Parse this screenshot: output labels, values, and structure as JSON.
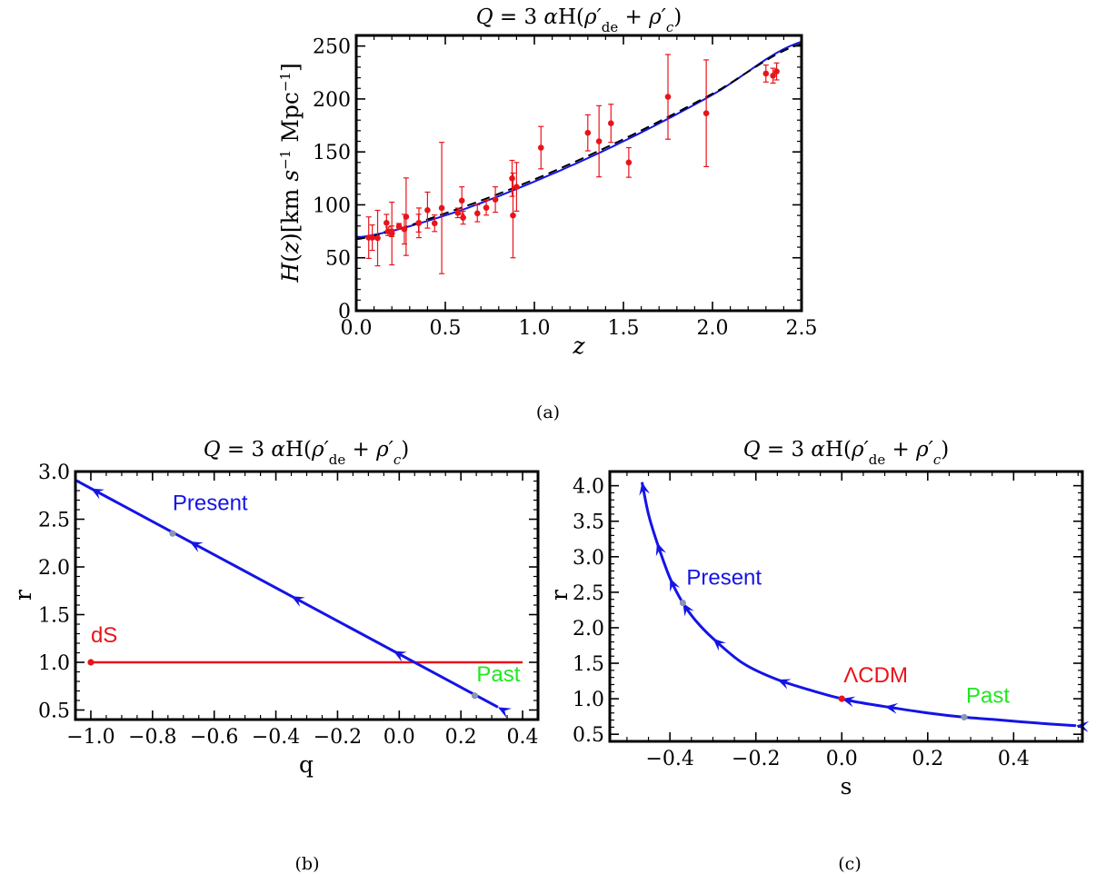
{
  "chart_data": [
    {
      "type": "scatter",
      "caption": "(a)",
      "title": "Q = 3 αH(ρ′de + ρ′c)",
      "xlabel": "z",
      "ylabel": "H(z)[km s⁻¹ Mpc⁻¹]",
      "xlim": [
        0,
        2.5
      ],
      "ylim": [
        0,
        260
      ],
      "xticks": [
        "0.0",
        "0.5",
        "1.0",
        "1.5",
        "2.0",
        "2.5"
      ],
      "yticks": [
        "0",
        "50",
        "100",
        "150",
        "200",
        "250"
      ],
      "observations": {
        "color": "#e8141b",
        "z": [
          0.07,
          0.09,
          0.12,
          0.17,
          0.179,
          0.199,
          0.2,
          0.24,
          0.27,
          0.28,
          0.35,
          0.352,
          0.4,
          0.44,
          0.48,
          0.57,
          0.593,
          0.6,
          0.68,
          0.73,
          0.781,
          0.875,
          0.88,
          0.9,
          1.037,
          1.3,
          1.363,
          1.43,
          1.53,
          1.75,
          1.965,
          2.3,
          2.34,
          2.36
        ],
        "H": [
          69,
          69,
          68.6,
          83,
          75,
          75,
          72.9,
          79.7,
          77,
          88.8,
          82.7,
          83,
          95,
          82.6,
          97,
          92.4,
          104,
          87.9,
          92,
          97.3,
          105,
          125,
          90,
          117,
          154,
          168,
          160,
          177,
          140,
          202,
          186.5,
          224,
          222,
          226
        ],
        "sigma": [
          19.6,
          12,
          26.2,
          8,
          4,
          5,
          29.6,
          2.7,
          14,
          36.6,
          8.4,
          14,
          17,
          7.8,
          62,
          4.5,
          13,
          6.1,
          8,
          7,
          12,
          17,
          40,
          23,
          20,
          17,
          33.6,
          18,
          14,
          40,
          50.4,
          8,
          7,
          8
        ]
      },
      "series": [
        {
          "name": "",
          "color": "#1414e6",
          "dash": "solid",
          "z": [
            0,
            0.5,
            1.0,
            1.5,
            2.0,
            2.5
          ],
          "H": [
            69,
            90,
            122,
            160,
            204,
            254
          ]
        },
        {
          "name": "",
          "color": "#000000",
          "dash": "dashed",
          "z": [
            0,
            0.5,
            1.0,
            1.5,
            2.0,
            2.5
          ],
          "H": [
            67.5,
            92,
            124,
            162,
            205,
            252
          ]
        }
      ]
    },
    {
      "type": "line",
      "caption": "(b)",
      "title": "Q = 3 αH(ρ′de + ρ′c)",
      "xlabel": "q",
      "ylabel": "r",
      "xlim": [
        -1.05,
        0.45
      ],
      "ylim": [
        0.4,
        3.0
      ],
      "xticks": [
        "−1.0",
        "−0.8",
        "−0.6",
        "−0.4",
        "−0.2",
        "0.0",
        "0.2",
        "0.4"
      ],
      "yticks": [
        "0.5",
        "1.0",
        "1.5",
        "2.0",
        "2.5",
        "3.0"
      ],
      "trajectory": {
        "color": "#1414e6",
        "q": [
          0.32,
          -1.05
        ],
        "r": [
          0.53,
          2.91
        ],
        "arrows_at_q": [
          0.32,
          -0.02,
          -0.35,
          -0.68,
          -1.0
        ]
      },
      "reference_line": {
        "label": "dS",
        "color": "#e8141b",
        "q": [
          -1.0,
          0.4
        ],
        "r": [
          1.0,
          1.0
        ]
      },
      "points": [
        {
          "label": "Present",
          "label_color": "#1414e6",
          "marker_color": "#8a97b0",
          "q": -0.735,
          "r": 2.35
        },
        {
          "label": "Past",
          "label_color": "#1ee81e",
          "marker_color": "#8a97b0",
          "q": 0.245,
          "r": 0.65
        },
        {
          "label": "dS",
          "label_color": "#e8141b",
          "marker_color": "#e8141b",
          "q": -1.0,
          "r": 1.0
        }
      ]
    },
    {
      "type": "line",
      "caption": "(c)",
      "title": "Q = 3 αH(ρ′de + ρ′c)",
      "xlabel": "s",
      "ylabel": "r",
      "xlim": [
        -0.54,
        0.56
      ],
      "ylim": [
        0.4,
        4.2
      ],
      "xticks": [
        "−0.4",
        "−0.2",
        "0.0",
        "0.2",
        "0.4"
      ],
      "yticks": [
        "0.5",
        "1.0",
        "1.5",
        "2.0",
        "2.5",
        "3.0",
        "3.5",
        "4.0"
      ],
      "trajectory": {
        "color": "#1414e6",
        "s": [
          0.545,
          0.45,
          0.35,
          0.285,
          0.2,
          0.1,
          0.03,
          0.0,
          -0.05,
          -0.15,
          -0.23,
          -0.3,
          -0.34,
          -0.37,
          -0.4,
          -0.43,
          -0.45,
          -0.465
        ],
        "r": [
          0.62,
          0.66,
          0.71,
          0.74,
          0.8,
          0.89,
          0.96,
          1.0,
          1.08,
          1.27,
          1.5,
          1.85,
          2.1,
          2.35,
          2.7,
          3.2,
          3.6,
          4.05
        ]
      },
      "points": [
        {
          "label": "Present",
          "label_color": "#1414e6",
          "marker_color": "#8a97b0",
          "s": -0.37,
          "r": 2.35
        },
        {
          "label": "ΛCDM",
          "label_color": "#e8141b",
          "marker_color": "#e8141b",
          "s": 0.0,
          "r": 1.0
        },
        {
          "label": "Past",
          "label_color": "#1ee81e",
          "marker_color": "#8a97b0",
          "s": 0.285,
          "r": 0.74
        }
      ]
    }
  ]
}
